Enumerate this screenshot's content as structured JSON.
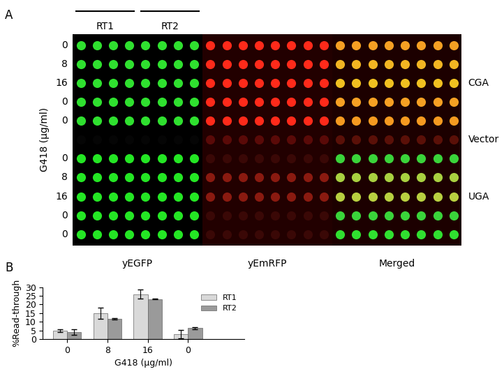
{
  "panel_a": {
    "label": "A",
    "ylabel": "G418 (µg/ml)",
    "strains": [
      "RT1",
      "RT2"
    ],
    "replicates": 4,
    "channels": [
      "yEGFP",
      "yEmRFP",
      "Merged"
    ],
    "blocks": [
      {
        "name": "CGA",
        "rows": [
          {
            "g418": 0,
            "colors": [
              "#2fe02f",
              "#ff2a1a",
              "#f5a023"
            ]
          },
          {
            "g418": 8,
            "colors": [
              "#2fe02f",
              "#ff2a1a",
              "#f2b522"
            ]
          },
          {
            "g418": 16,
            "colors": [
              "#2fe02f",
              "#ff2a1a",
              "#f0c020"
            ]
          },
          {
            "g418": 0,
            "colors": [
              "#2fe02f",
              "#ff2a1a",
              "#f5a023"
            ]
          },
          {
            "g418": 0,
            "colors": [
              "#2fe02f",
              "#ff2a1a",
              "#f59a20"
            ]
          }
        ]
      },
      {
        "name": "Vector",
        "rows": [
          {
            "g418": null,
            "colors": [
              "#050505",
              "#5a0a08",
              "#5a1008"
            ]
          }
        ]
      },
      {
        "name": "UGA",
        "rows": [
          {
            "g418": 0,
            "colors": [
              "#24e624",
              "#3a0806",
              "#3ad43a"
            ]
          },
          {
            "g418": 8,
            "colors": [
              "#24e624",
              "#8a1a10",
              "#a8d040"
            ]
          },
          {
            "g418": 16,
            "colors": [
              "#24e624",
              "#8a1a10",
              "#b8d040"
            ]
          },
          {
            "g418": 0,
            "colors": [
              "#24e624",
              "#3a0806",
              "#3ad43a"
            ]
          },
          {
            "g418": 0,
            "colors": [
              "#24e624",
              "#3a0806",
              "#30e030"
            ]
          }
        ]
      }
    ]
  },
  "chart_data": {
    "label": "B",
    "type": "bar",
    "categories": [
      "0",
      "8",
      "16",
      "0"
    ],
    "xlabel": "G418 (µg/ml)",
    "ylabel": "%Read-through",
    "ylim": [
      0,
      30
    ],
    "yticks": [
      0,
      5,
      10,
      15,
      20,
      25,
      30
    ],
    "legend": "upper right",
    "series": [
      {
        "name": "RT1",
        "color": "#d9d9d9",
        "values": [
          4.8,
          15.0,
          26.0,
          2.8
        ],
        "errors": [
          1.0,
          3.3,
          2.5,
          2.3
        ]
      },
      {
        "name": "RT2",
        "color": "#9a9a9a",
        "values": [
          4.1,
          11.8,
          23.2,
          6.3
        ],
        "errors": [
          1.7,
          0.4,
          0.2,
          0.6
        ]
      }
    ]
  }
}
